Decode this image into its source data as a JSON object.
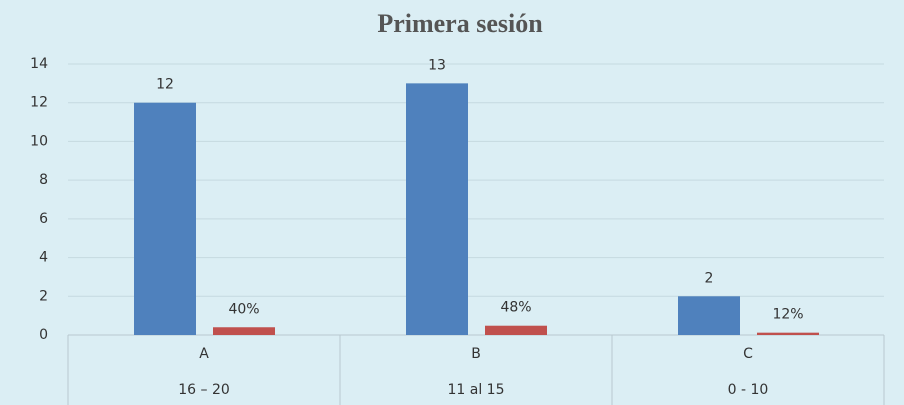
{
  "chart_data": {
    "type": "bar",
    "title": "Primera sesión",
    "categories": [
      "A",
      "B",
      "C"
    ],
    "subcategories": [
      "16 – 20",
      "11 al 15",
      "0 - 10"
    ],
    "series": [
      {
        "color": "#4f81bd",
        "values": [
          12,
          13,
          2
        ]
      },
      {
        "color": "#c0504d",
        "values": [
          0.4,
          0.48,
          0.12
        ],
        "value_labels": [
          "40%",
          "48%",
          "12%"
        ]
      }
    ],
    "ylim": [
      0,
      14
    ],
    "yticks": [
      0,
      2,
      4,
      6,
      8,
      10,
      12,
      14
    ],
    "grid": true
  }
}
